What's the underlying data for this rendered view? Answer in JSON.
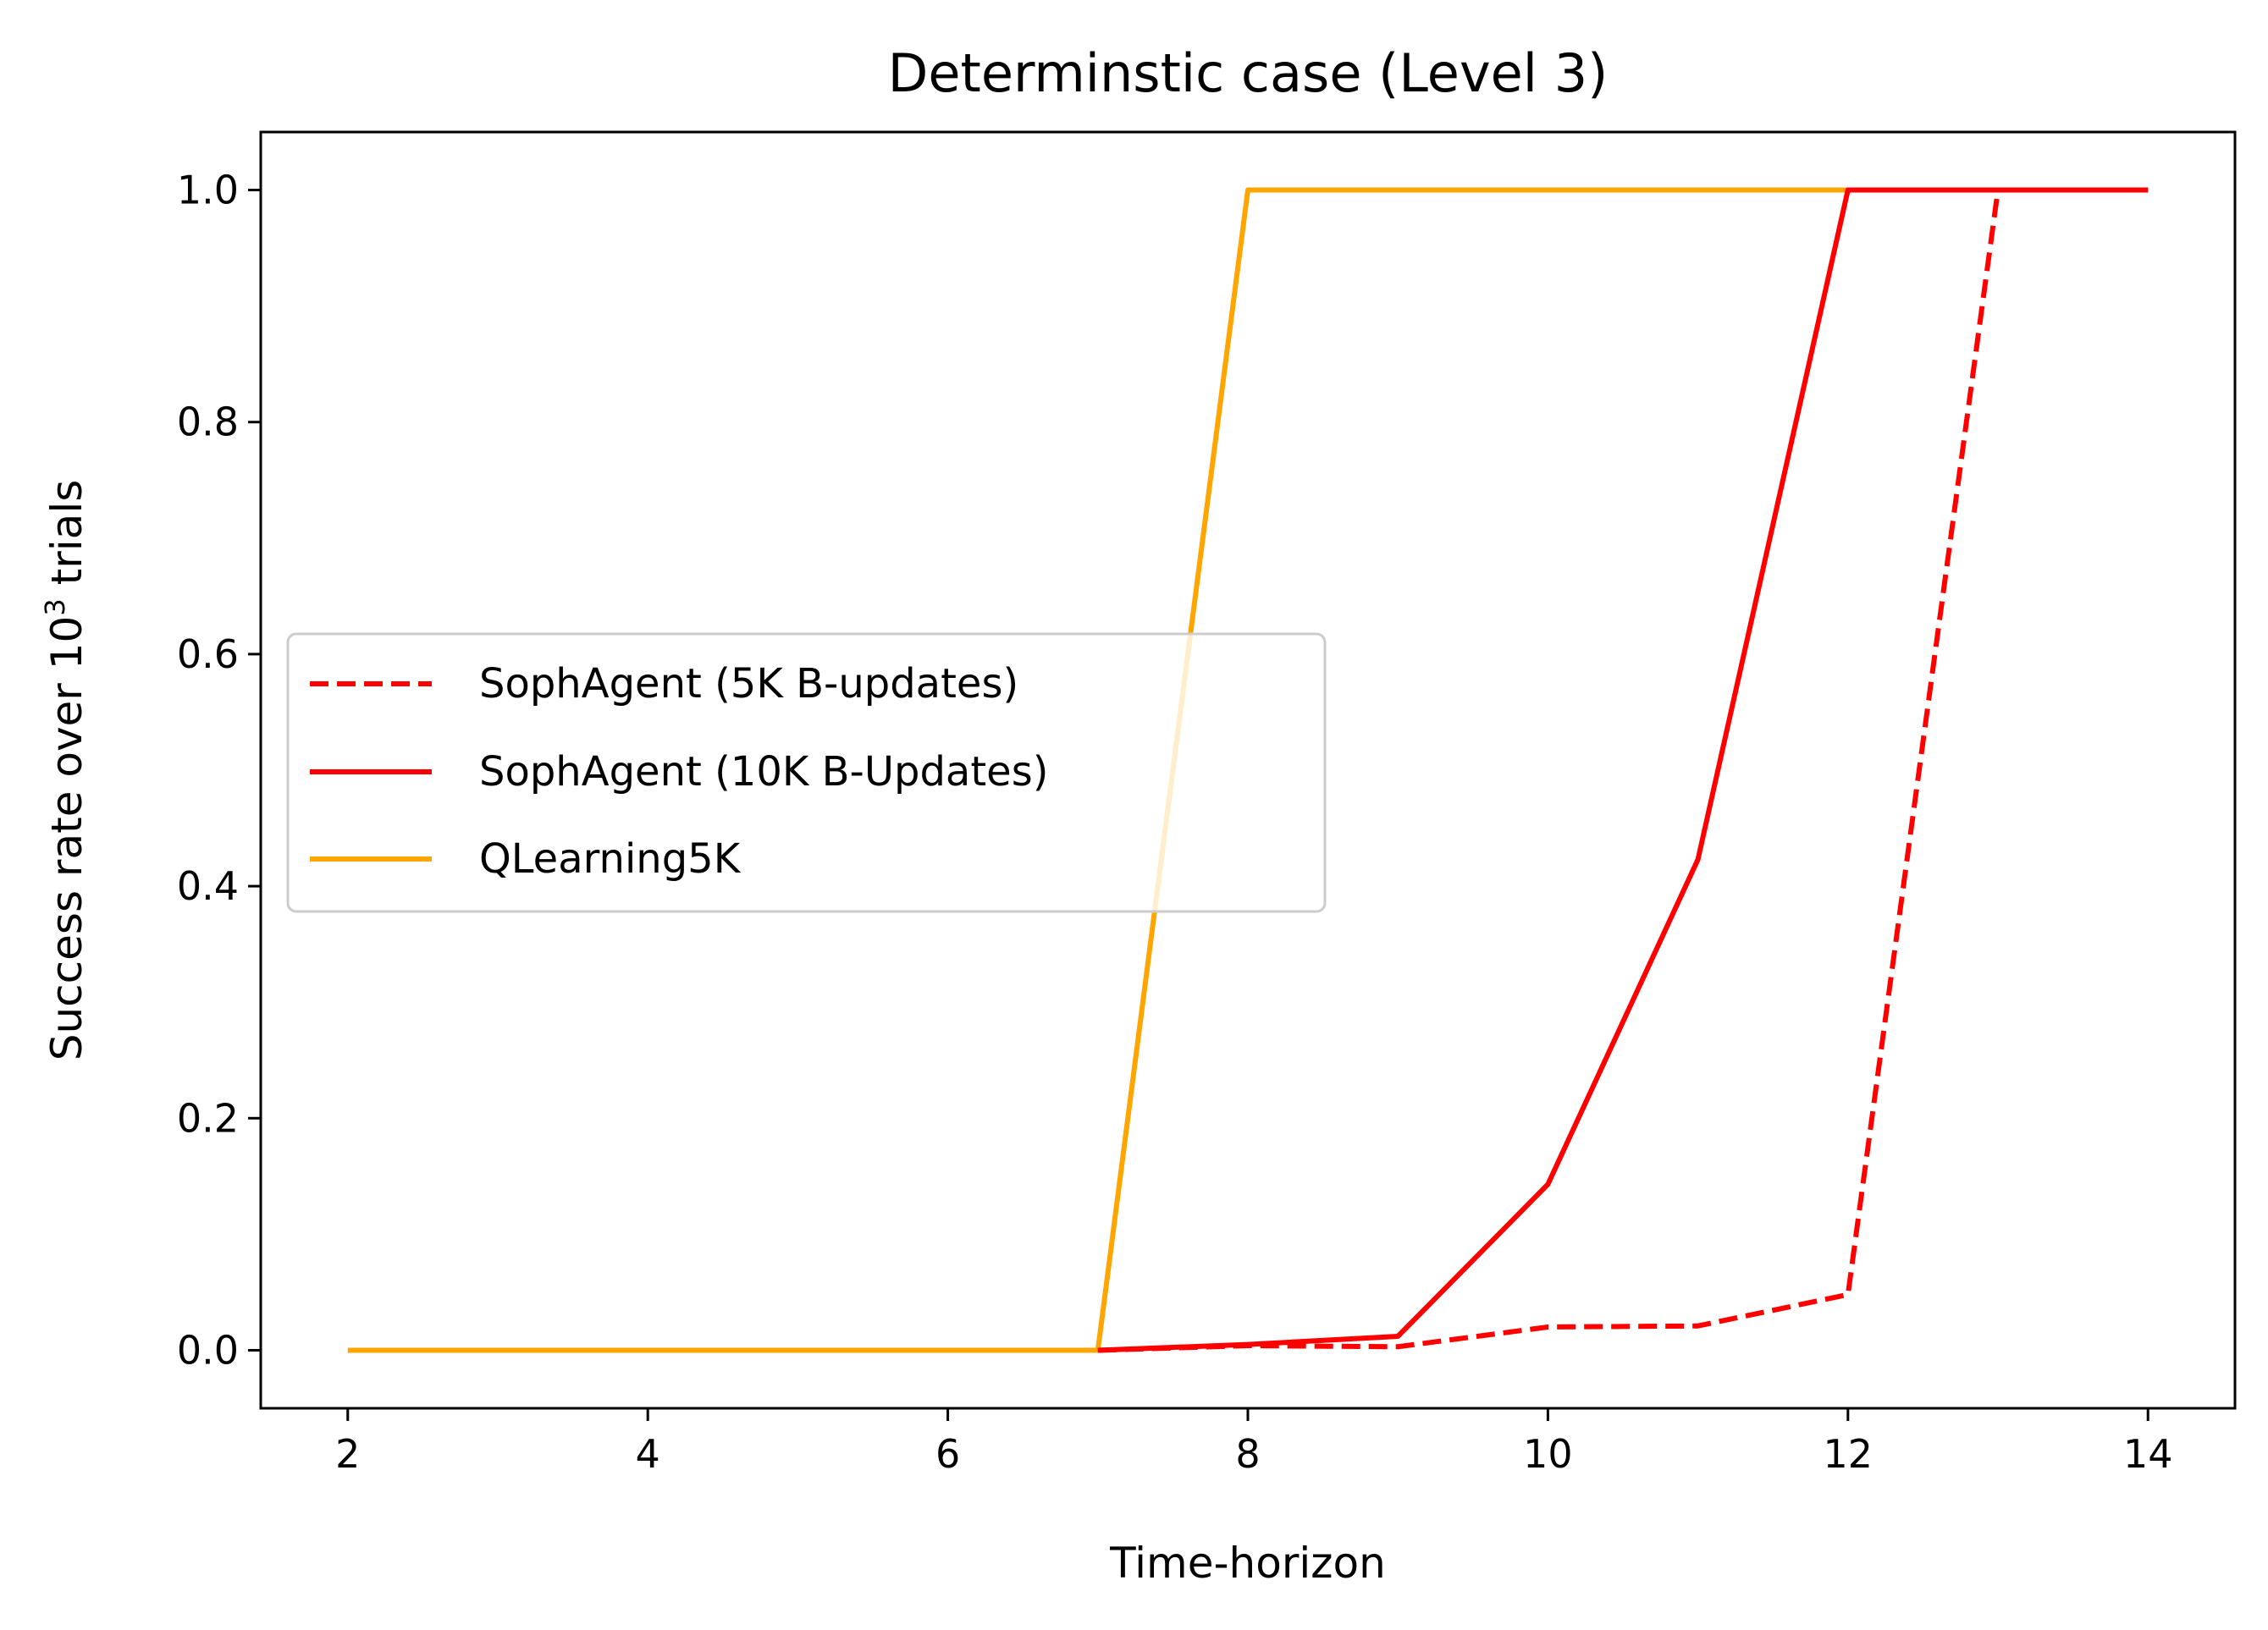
{
  "chart_data": {
    "type": "line",
    "title": "Determinstic case (Level 3)",
    "xlabel": "Time-horizon",
    "ylabel_parts": [
      "Success rate over 10",
      "3",
      " trials"
    ],
    "xlim": [
      1.42,
      14.58
    ],
    "ylim": [
      -0.05,
      1.05
    ],
    "x_ticks": [
      2,
      4,
      6,
      8,
      10,
      12,
      14
    ],
    "x_tick_labels": [
      "2",
      "4",
      "6",
      "8",
      "10",
      "12",
      "14"
    ],
    "y_ticks": [
      0.0,
      0.2,
      0.4,
      0.6,
      0.8,
      1.0
    ],
    "y_tick_labels": [
      "0.0",
      "0.2",
      "0.4",
      "0.6",
      "0.8",
      "1.0"
    ],
    "grid": false,
    "legend_position": "center-left",
    "series": [
      {
        "name": "SophAgent (5K B-updates)",
        "color": "#ff0000",
        "style": "dashed",
        "x": [
          7,
          8,
          9,
          10,
          11,
          12,
          13,
          14
        ],
        "y": [
          0.0,
          0.004,
          0.003,
          0.02,
          0.021,
          0.048,
          1.0,
          1.0
        ]
      },
      {
        "name": "SophAgent (10K B-Updates)",
        "color": "#ff0000",
        "style": "solid",
        "x": [
          7,
          8,
          9,
          10,
          11,
          12,
          13,
          14
        ],
        "y": [
          0.0,
          0.005,
          0.012,
          0.143,
          0.423,
          1.0,
          1.0,
          1.0
        ]
      },
      {
        "name": "QLearning5K",
        "color": "#ffa500",
        "style": "solid",
        "x": [
          2,
          3,
          4,
          5,
          6,
          7,
          8,
          9,
          10,
          11,
          12,
          13,
          14
        ],
        "y": [
          0.0,
          0.0,
          0.0,
          0.0,
          0.0,
          0.0,
          1.0,
          1.0,
          1.0,
          1.0,
          1.0,
          1.0,
          1.0
        ]
      }
    ]
  }
}
